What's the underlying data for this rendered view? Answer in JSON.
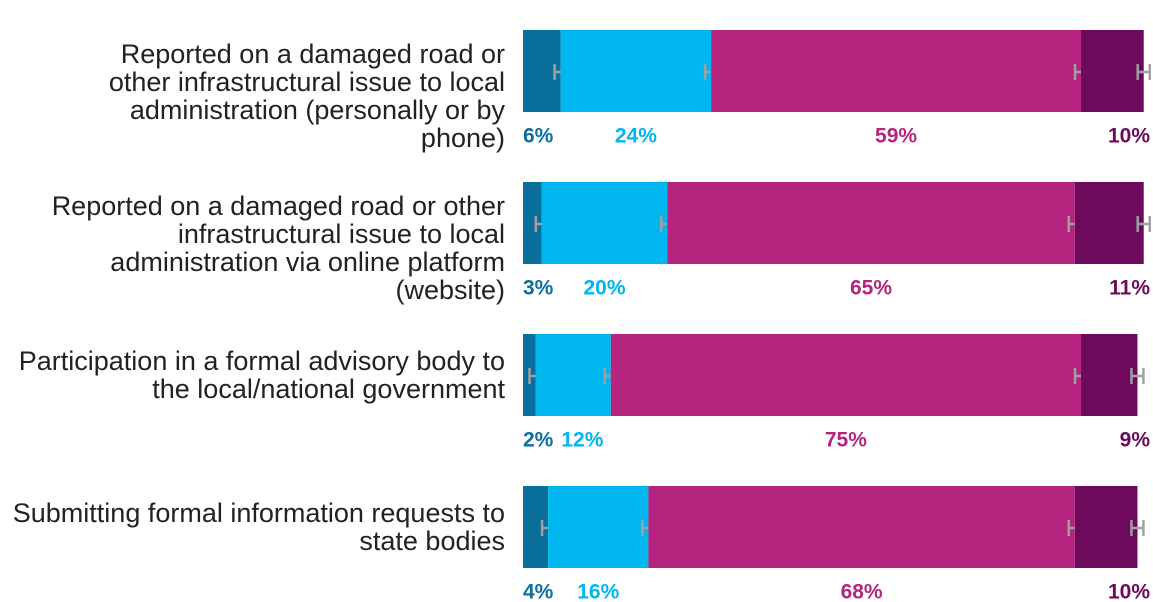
{
  "chart_data": {
    "type": "stacked-bar",
    "orientation": "horizontal",
    "categories": [
      "Reported on a damaged road or other infrastructural issue to local administration (personally or by phone)",
      "Reported on a damaged road or other infrastructural issue to local administration via online platform (website)",
      "Participation in a formal advisory body to the local/national government",
      "Submitting formal information requests to state bodies"
    ],
    "series": [
      {
        "color": "#0b6f9c",
        "values": [
          6,
          3,
          2,
          4
        ],
        "value_labels": [
          "6%",
          "3%",
          "2%",
          "4%"
        ]
      },
      {
        "color": "#00b6ef",
        "values": [
          24,
          20,
          12,
          16
        ],
        "value_labels": [
          "24%",
          "20%",
          "12%",
          "16%"
        ]
      },
      {
        "color": "#b5247f",
        "values": [
          59,
          65,
          75,
          68
        ],
        "value_labels": [
          "59%",
          "65%",
          "75%",
          "68%"
        ]
      },
      {
        "color": "#6d0a5b",
        "values": [
          10,
          11,
          9,
          10
        ],
        "value_labels": [
          "10%",
          "11%",
          "9%",
          "10%"
        ]
      }
    ],
    "xlim": [
      0,
      100
    ]
  }
}
